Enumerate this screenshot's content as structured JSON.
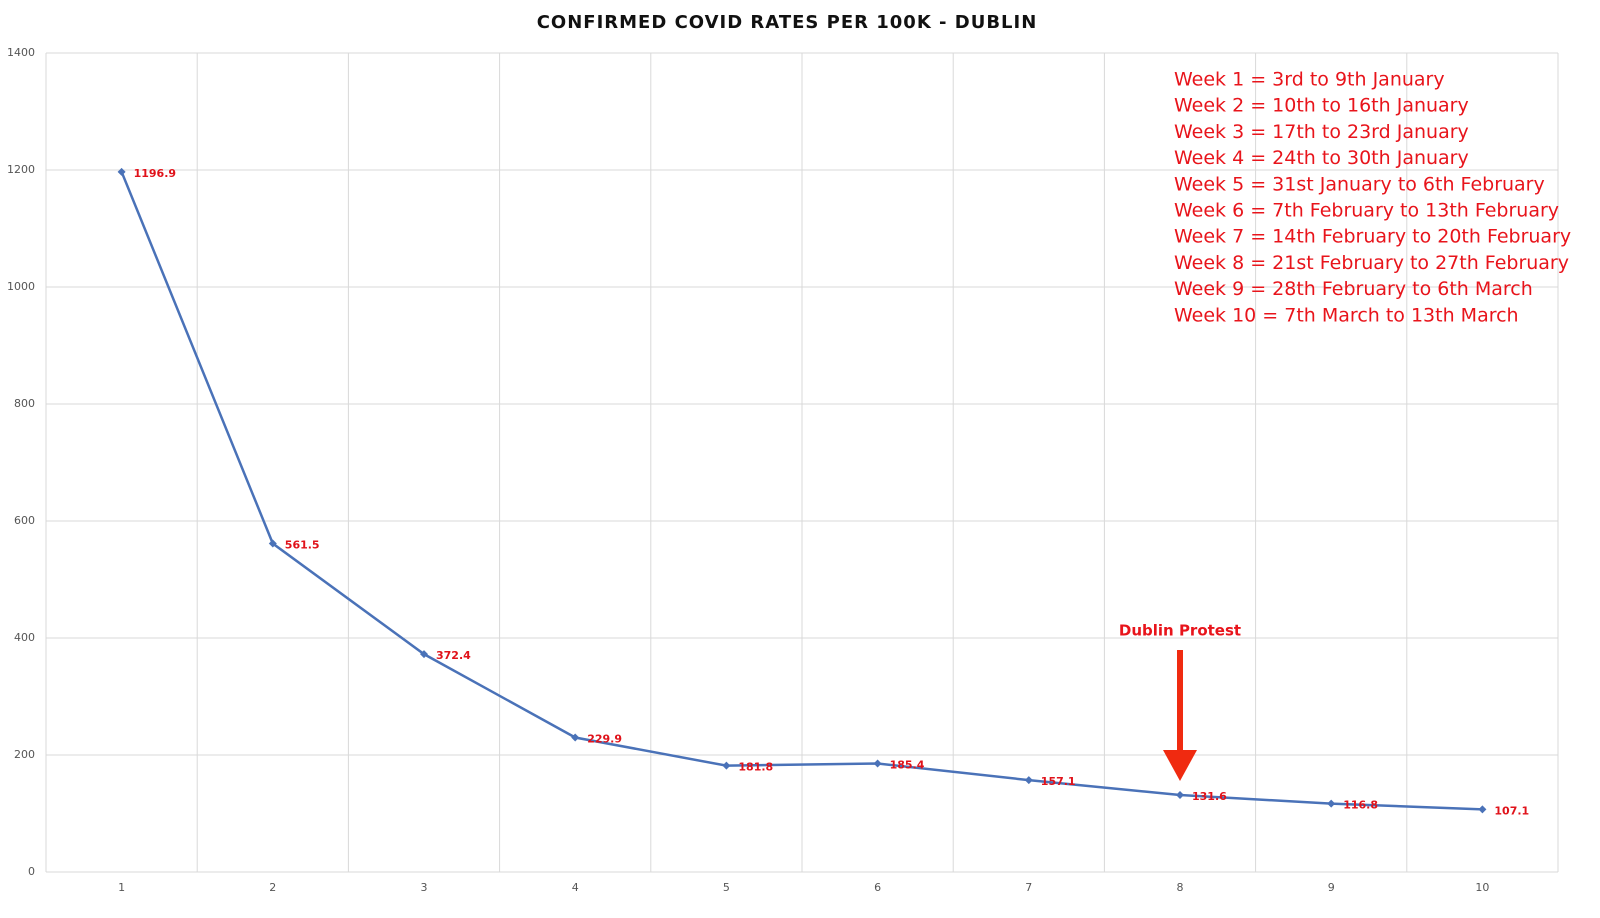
{
  "chart_data": {
    "type": "line",
    "title": "CONFIRMED COVID RATES PER 100K - DUBLIN",
    "categories": [
      "1",
      "2",
      "3",
      "4",
      "5",
      "6",
      "7",
      "8",
      "9",
      "10"
    ],
    "values": [
      1196.9,
      561.5,
      372.4,
      229.9,
      181.8,
      185.4,
      157.1,
      131.6,
      116.8,
      107.1
    ],
    "color": "#4a72b8",
    "ylim": [
      0,
      1400
    ],
    "yticks": [
      0,
      200,
      400,
      600,
      800,
      1000,
      1200,
      1400
    ],
    "grid": true,
    "notes": [
      "Week 1 = 3rd to 9th January",
      "Week 2 = 10th to 16th January",
      "Week 3 = 17th to 23rd January",
      "Week 4 = 24th to 30th January",
      "Week 5 = 31st January to 6th February",
      "Week 6 = 7th February to 13th February",
      "Week 7 = 14th February to 20th February",
      "Week 8 = 21st February to 27th February",
      "Week 9 = 28th February to 6th March",
      "Week 10 = 7th March to 13th March"
    ],
    "annotation": {
      "text": "Dublin Protest",
      "category_index": 7
    }
  }
}
